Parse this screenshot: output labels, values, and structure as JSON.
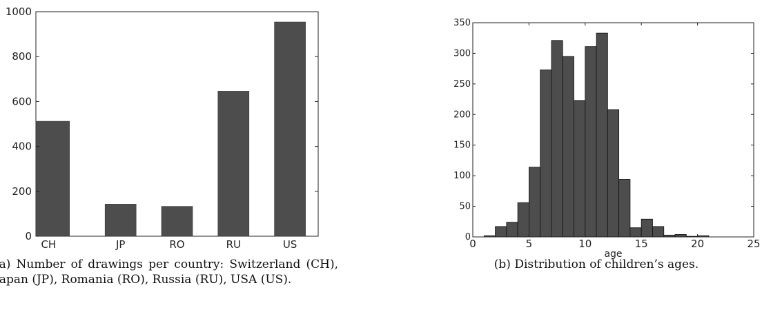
{
  "chart_data": [
    {
      "type": "bar",
      "categories": [
        "CH",
        "JP",
        "RO",
        "RU",
        "US"
      ],
      "values": [
        512,
        143,
        133,
        646,
        954
      ],
      "ylim": [
        0,
        1000
      ],
      "yticks": [
        0,
        200,
        400,
        600,
        800,
        1000
      ],
      "xlabel": "",
      "ylabel": "",
      "caption": "(a) Number of drawings per country: Switzerland (CH), Japan (JP), Romania (RO), Russia (RU), USA (US).",
      "bar_color": "#4d4d4d"
    },
    {
      "type": "bar",
      "bins": [
        [
          1,
          2
        ],
        [
          2,
          3
        ],
        [
          3,
          4
        ],
        [
          4,
          5
        ],
        [
          5,
          6
        ],
        [
          6,
          7
        ],
        [
          7,
          8
        ],
        [
          8,
          9
        ],
        [
          9,
          10
        ],
        [
          10,
          11
        ],
        [
          11,
          12
        ],
        [
          12,
          13
        ],
        [
          13,
          14
        ],
        [
          14,
          15
        ],
        [
          15,
          16
        ],
        [
          16,
          17
        ],
        [
          17,
          18
        ],
        [
          18,
          19
        ],
        [
          19,
          20
        ],
        [
          20,
          21
        ],
        [
          21,
          22
        ],
        [
          22,
          23
        ],
        [
          23,
          24
        ]
      ],
      "values": [
        2,
        17,
        24,
        56,
        114,
        273,
        321,
        295,
        223,
        311,
        333,
        208,
        94,
        15,
        29,
        17,
        3,
        4,
        1,
        2,
        0,
        0,
        0
      ],
      "xlim": [
        0,
        25
      ],
      "ylim": [
        0,
        350
      ],
      "xticks": [
        0,
        5,
        10,
        15,
        20,
        25
      ],
      "yticks": [
        0,
        50,
        100,
        150,
        200,
        250,
        300,
        350
      ],
      "xlabel": "age",
      "ylabel": "",
      "caption": "(b) Distribution of children’s ages.",
      "bar_color": "#4d4d4d"
    }
  ]
}
